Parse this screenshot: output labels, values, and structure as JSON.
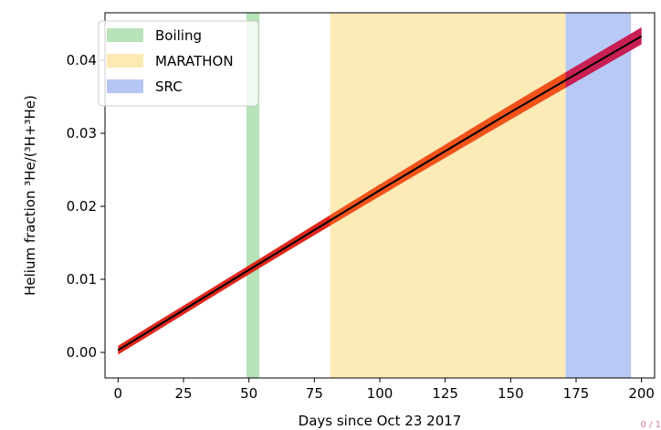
{
  "chart_data": {
    "type": "line",
    "xlabel": "Days since Oct 23 2017",
    "ylabel": "Helium fraction ³He/(³H+³He)",
    "xlim": [
      -5,
      205
    ],
    "ylim": [
      -0.0035,
      0.0465
    ],
    "x_ticks": [
      0,
      25,
      50,
      75,
      100,
      125,
      150,
      175,
      200
    ],
    "y_ticks": [
      0.0,
      0.01,
      0.02,
      0.03,
      0.04
    ],
    "y_tick_labels": [
      "0.00",
      "0.01",
      "0.02",
      "0.03",
      "0.04"
    ],
    "legend_position": "top-left",
    "grid": false,
    "periods": [
      {
        "name": "Boiling",
        "start": 49,
        "end": 54,
        "color": "#b7e3b9"
      },
      {
        "name": "MARATHON",
        "start": 81,
        "end": 171,
        "color": "#fce9b3"
      },
      {
        "name": "SRC",
        "start": 171,
        "end": 196,
        "color": "#b5c6f4"
      }
    ],
    "series": [
      {
        "x": [
          0,
          50,
          100,
          150,
          200
        ],
        "y": [
          0.0003,
          0.0113,
          0.0222,
          0.0329,
          0.0433
        ],
        "y_lower": [
          0.0,
          0.011,
          0.0217,
          0.0322,
          0.0425
        ],
        "y_upper": [
          0.0006,
          0.0116,
          0.0227,
          0.0336,
          0.0442
        ],
        "color": "#000000",
        "band_colors": {
          "default": "#e0271d",
          "MARATHON": "#f0521a",
          "SRC": "#c81f55"
        }
      }
    ]
  }
}
